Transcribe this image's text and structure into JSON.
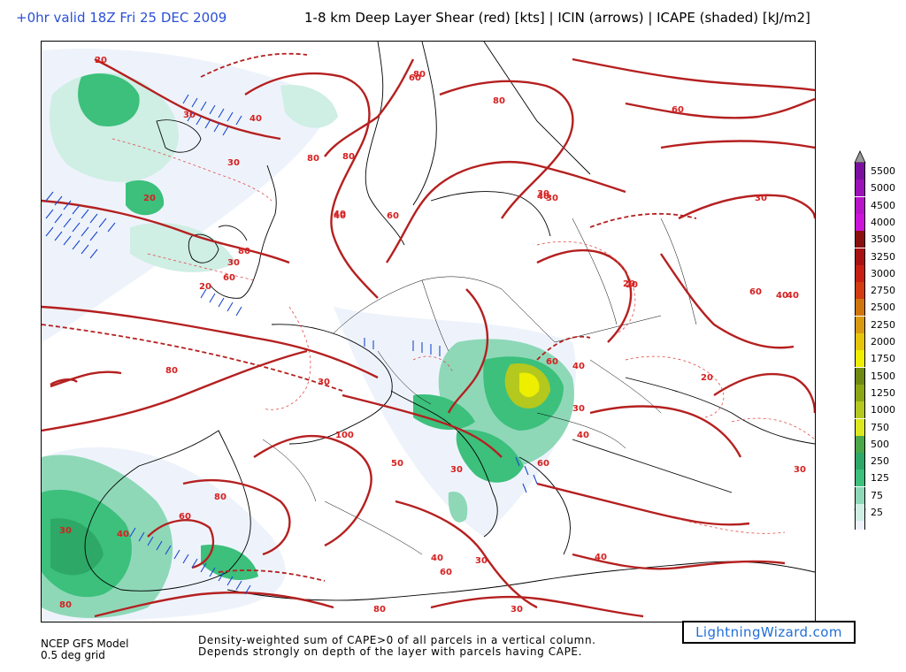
{
  "header": {
    "valid_time": "+0hr valid 18Z Fri 25 DEC 2009",
    "title": "1-8 km Deep Layer Shear (red) [kts] | ICIN (arrows) | ICAPE (shaded) [kJ/m2]"
  },
  "footer": {
    "model_line1": "NCEP GFS Model",
    "model_line2": "0.5 deg grid",
    "desc_line1": "Density-weighted sum of CAPE>0 of all parcels in a vertical column.",
    "desc_line2": "Depends strongly on depth of the layer with parcels having CAPE.",
    "brand": "LightningWizard.com"
  },
  "legend": {
    "levels": [
      {
        "label": "5500",
        "color": "#7a0fa0"
      },
      {
        "label": "5000",
        "color": "#9a12b8"
      },
      {
        "label": "4500",
        "color": "#b814c8"
      },
      {
        "label": "4000",
        "color": "#cc14d8"
      },
      {
        "label": "3500",
        "color": "#8a1010"
      },
      {
        "label": "3250",
        "color": "#a81212"
      },
      {
        "label": "3000",
        "color": "#c81f14"
      },
      {
        "label": "2750",
        "color": "#d23c10"
      },
      {
        "label": "2500",
        "color": "#d0740e"
      },
      {
        "label": "2250",
        "color": "#d89a10"
      },
      {
        "label": "2000",
        "color": "#e6c40c"
      },
      {
        "label": "1750",
        "color": "#eeee00"
      },
      {
        "label": "1500",
        "color": "#6e8a10"
      },
      {
        "label": "1250",
        "color": "#8ca614"
      },
      {
        "label": "1000",
        "color": "#b4c81e"
      },
      {
        "label": "750",
        "color": "#dce81e"
      },
      {
        "label": "500",
        "color": "#4aa84a"
      },
      {
        "label": "250",
        "color": "#2ea866"
      },
      {
        "label": "125",
        "color": "#3cc07c"
      },
      {
        "label": "75",
        "color": "#8ed8b8"
      },
      {
        "label": "25",
        "color": "#cfeee4"
      }
    ],
    "bottom_color": "#eef3fb",
    "top_arrow_color": "#999999"
  },
  "map": {
    "shear_contour_color": "#b52020",
    "coast_color": "#000000",
    "arrow_color": "#1a48d0",
    "shear_labels": [
      {
        "text": "80"
      },
      {
        "text": "80"
      },
      {
        "text": "80"
      },
      {
        "text": "60"
      },
      {
        "text": "20"
      },
      {
        "text": "30"
      },
      {
        "text": "40"
      },
      {
        "text": "30"
      },
      {
        "text": "20"
      },
      {
        "text": "60"
      },
      {
        "text": "80"
      },
      {
        "text": "40"
      },
      {
        "text": "30"
      },
      {
        "text": "20"
      },
      {
        "text": "30"
      },
      {
        "text": "40"
      },
      {
        "text": "60"
      },
      {
        "text": "80"
      },
      {
        "text": "40"
      },
      {
        "text": "20"
      },
      {
        "text": "60"
      },
      {
        "text": "30"
      },
      {
        "text": "40"
      },
      {
        "text": "30"
      },
      {
        "text": "20"
      },
      {
        "text": "40"
      },
      {
        "text": "80"
      },
      {
        "text": "100"
      },
      {
        "text": "30"
      },
      {
        "text": "60"
      },
      {
        "text": "50"
      },
      {
        "text": "80"
      },
      {
        "text": "60"
      },
      {
        "text": "40"
      },
      {
        "text": "30"
      },
      {
        "text": "40"
      },
      {
        "text": "30"
      },
      {
        "text": "40"
      },
      {
        "text": "30"
      },
      {
        "text": "40"
      },
      {
        "text": "60"
      },
      {
        "text": "80"
      },
      {
        "text": "40"
      },
      {
        "text": "60"
      },
      {
        "text": "30"
      },
      {
        "text": "80"
      },
      {
        "text": "60"
      },
      {
        "text": "20"
      },
      {
        "text": "30"
      },
      {
        "text": "30"
      }
    ]
  }
}
